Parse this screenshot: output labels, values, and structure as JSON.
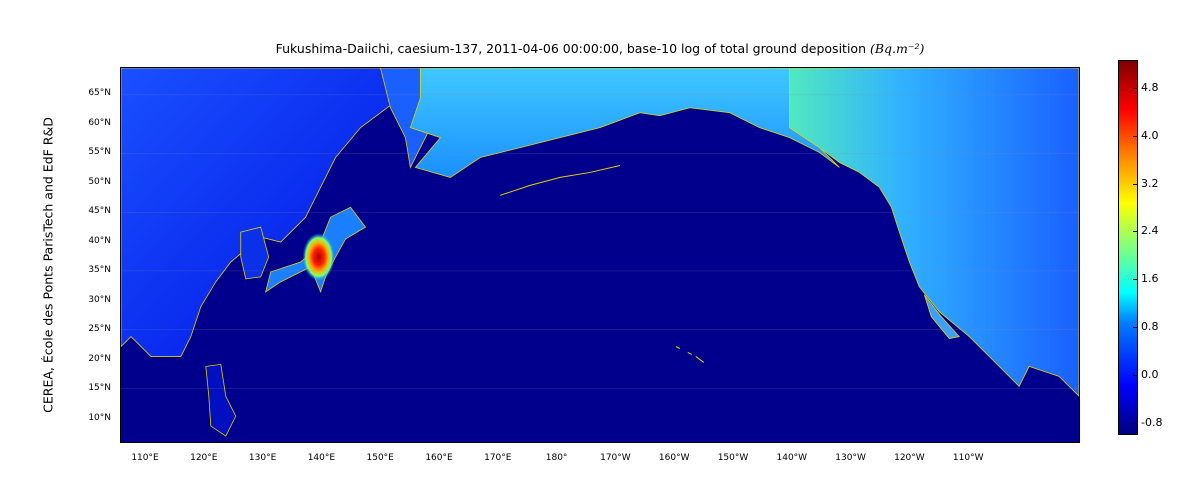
{
  "title": {
    "text": "Fukushima-Daiichi, caesium-137, 2011-04-06 00:00:00,  base-10 log of total ground deposition",
    "unit": "(Bq.m⁻²)"
  },
  "credit": "CEREA, École des Ponts ParisTech and EdF R&D",
  "map": {
    "projection": "cylindrical",
    "ocean_color": "#00008c",
    "coastline_color": "#e6d200",
    "colormap": "jet",
    "hotspot": "Fukushima, Japan",
    "lat_labels": [
      "65°N",
      "60°N",
      "55°N",
      "50°N",
      "45°N",
      "40°N",
      "35°N",
      "30°N",
      "25°N",
      "20°N",
      "15°N",
      "10°N"
    ],
    "lon_labels": [
      "110°E",
      "120°E",
      "130°E",
      "140°E",
      "150°E",
      "160°E",
      "170°E",
      "180°",
      "170°W",
      "160°W",
      "150°W",
      "140°W",
      "130°W",
      "120°W",
      "110°W"
    ]
  },
  "colorbar": {
    "ticks": [
      "4.8",
      "4.0",
      "3.2",
      "2.4",
      "1.6",
      "0.8",
      "0.0",
      "-0.8"
    ],
    "range": [
      -1.0,
      5.3
    ]
  }
}
